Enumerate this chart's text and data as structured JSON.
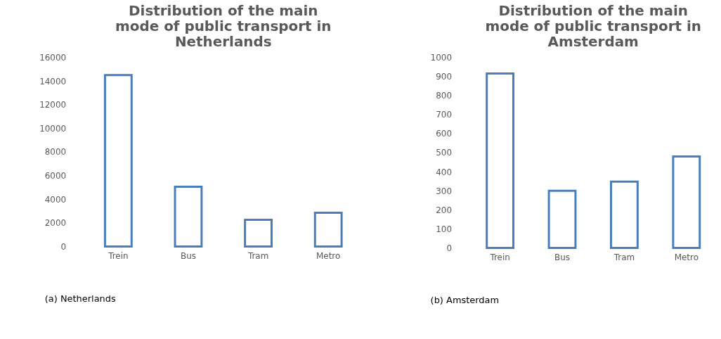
{
  "chart_data": [
    {
      "type": "bar",
      "title": "Distribution of the main mode of public transport in Netherlands",
      "categories": [
        "Trein",
        "Bus",
        "Tram",
        "Metro"
      ],
      "values": [
        14500,
        5050,
        2260,
        2850
      ],
      "color": "#4a7ebb",
      "ylim": [
        0,
        16000
      ],
      "yticks": [
        0,
        2000,
        4000,
        6000,
        8000,
        10000,
        12000,
        14000,
        16000
      ],
      "grid": false,
      "annotations": [
        "(a) Netherlands"
      ]
    },
    {
      "type": "bar",
      "title": "Distribution of the main mode of public transport in Amsterdam",
      "categories": [
        "Trein",
        "Bus",
        "Tram",
        "Metro"
      ],
      "values": [
        915,
        300,
        348,
        480
      ],
      "color": "#4a7ebb",
      "ylim": [
        0,
        1000
      ],
      "yticks": [
        0,
        100,
        200,
        300,
        400,
        500,
        600,
        700,
        800,
        900,
        1000
      ],
      "grid": false,
      "annotations": [
        "(b) Amsterdam"
      ]
    }
  ]
}
